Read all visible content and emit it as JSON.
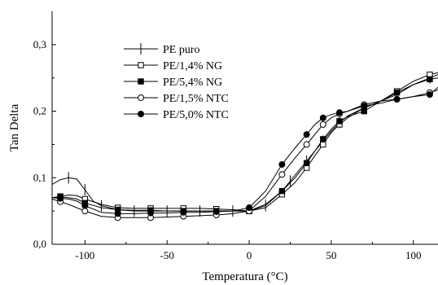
{
  "chart_data": {
    "type": "line",
    "xlabel": "Temperatura (°C)",
    "ylabel": "Tan Delta",
    "xlim": [
      -120,
      115
    ],
    "ylim": [
      0,
      0.35
    ],
    "xticks": [
      {
        "value": -100,
        "label": "-100"
      },
      {
        "value": -50,
        "label": "-50"
      },
      {
        "value": 0,
        "label": "0"
      },
      {
        "value": 50,
        "label": "50"
      },
      {
        "value": 100,
        "label": "100"
      }
    ],
    "yticks": [
      {
        "value": 0.0,
        "label": "0,0"
      },
      {
        "value": 0.1,
        "label": "0,1"
      },
      {
        "value": 0.2,
        "label": "0,2"
      },
      {
        "value": 0.3,
        "label": "0,3"
      }
    ],
    "grid": false,
    "legend_position": "top-left",
    "series": [
      {
        "name": "PE puro",
        "marker": "plus",
        "x": [
          -120,
          -115,
          -110,
          -105,
          -100,
          -95,
          -90,
          -80,
          -70,
          -60,
          -50,
          -40,
          -30,
          -20,
          -10,
          0,
          10,
          20,
          25,
          30,
          35,
          40,
          45,
          50,
          55,
          60,
          70,
          80,
          90,
          100,
          110,
          115
        ],
        "y": [
          0.09,
          0.097,
          0.1,
          0.098,
          0.082,
          0.065,
          0.058,
          0.052,
          0.05,
          0.05,
          0.05,
          0.05,
          0.05,
          0.05,
          0.05,
          0.05,
          0.058,
          0.08,
          0.095,
          0.11,
          0.125,
          0.14,
          0.155,
          0.17,
          0.183,
          0.193,
          0.205,
          0.215,
          0.225,
          0.24,
          0.25,
          0.255
        ]
      },
      {
        "name": "PE/1,4% NG",
        "marker": "square-open",
        "x": [
          -120,
          -115,
          -110,
          -105,
          -100,
          -90,
          -80,
          -70,
          -60,
          -50,
          -40,
          -30,
          -20,
          -10,
          0,
          10,
          20,
          28,
          35,
          40,
          45,
          50,
          55,
          60,
          70,
          80,
          90,
          100,
          110,
          115
        ],
        "y": [
          0.07,
          0.072,
          0.074,
          0.073,
          0.068,
          0.06,
          0.055,
          0.054,
          0.054,
          0.054,
          0.054,
          0.054,
          0.053,
          0.052,
          0.05,
          0.055,
          0.075,
          0.093,
          0.115,
          0.133,
          0.15,
          0.168,
          0.18,
          0.19,
          0.205,
          0.215,
          0.23,
          0.245,
          0.255,
          0.258
        ]
      },
      {
        "name": "PE/5,4% NG",
        "marker": "square-filled",
        "x": [
          -120,
          -115,
          -110,
          -105,
          -100,
          -90,
          -80,
          -70,
          -60,
          -50,
          -40,
          -30,
          -20,
          -10,
          0,
          10,
          20,
          28,
          35,
          40,
          45,
          50,
          55,
          60,
          70,
          80,
          90,
          100,
          110,
          115
        ],
        "y": [
          0.07,
          0.071,
          0.07,
          0.068,
          0.062,
          0.055,
          0.052,
          0.051,
          0.051,
          0.05,
          0.05,
          0.05,
          0.05,
          0.05,
          0.05,
          0.06,
          0.08,
          0.1,
          0.122,
          0.14,
          0.158,
          0.173,
          0.185,
          0.192,
          0.2,
          0.215,
          0.228,
          0.24,
          0.248,
          0.25
        ]
      },
      {
        "name": "PE/1,5% NTC",
        "marker": "circle-open",
        "x": [
          -120,
          -115,
          -110,
          -105,
          -100,
          -90,
          -80,
          -70,
          -60,
          -50,
          -40,
          -30,
          -20,
          -10,
          0,
          10,
          20,
          28,
          35,
          40,
          45,
          50,
          55,
          60,
          70,
          80,
          90,
          100,
          110,
          115
        ],
        "y": [
          0.068,
          0.064,
          0.06,
          0.055,
          0.05,
          0.042,
          0.04,
          0.04,
          0.04,
          0.041,
          0.042,
          0.043,
          0.044,
          0.046,
          0.05,
          0.072,
          0.105,
          0.13,
          0.15,
          0.165,
          0.18,
          0.19,
          0.196,
          0.2,
          0.21,
          0.215,
          0.218,
          0.222,
          0.228,
          0.232
        ]
      },
      {
        "name": "PE/5,0% NTC",
        "marker": "circle-filled",
        "x": [
          -120,
          -115,
          -110,
          -105,
          -100,
          -90,
          -80,
          -70,
          -60,
          -50,
          -40,
          -30,
          -20,
          -10,
          0,
          10,
          20,
          28,
          35,
          40,
          45,
          50,
          55,
          60,
          70,
          80,
          90,
          100,
          110,
          115
        ],
        "y": [
          0.07,
          0.069,
          0.068,
          0.065,
          0.058,
          0.048,
          0.046,
          0.046,
          0.047,
          0.047,
          0.048,
          0.048,
          0.049,
          0.05,
          0.055,
          0.08,
          0.12,
          0.145,
          0.165,
          0.18,
          0.19,
          0.195,
          0.198,
          0.2,
          0.208,
          0.212,
          0.218,
          0.222,
          0.225,
          0.236
        ]
      }
    ]
  }
}
